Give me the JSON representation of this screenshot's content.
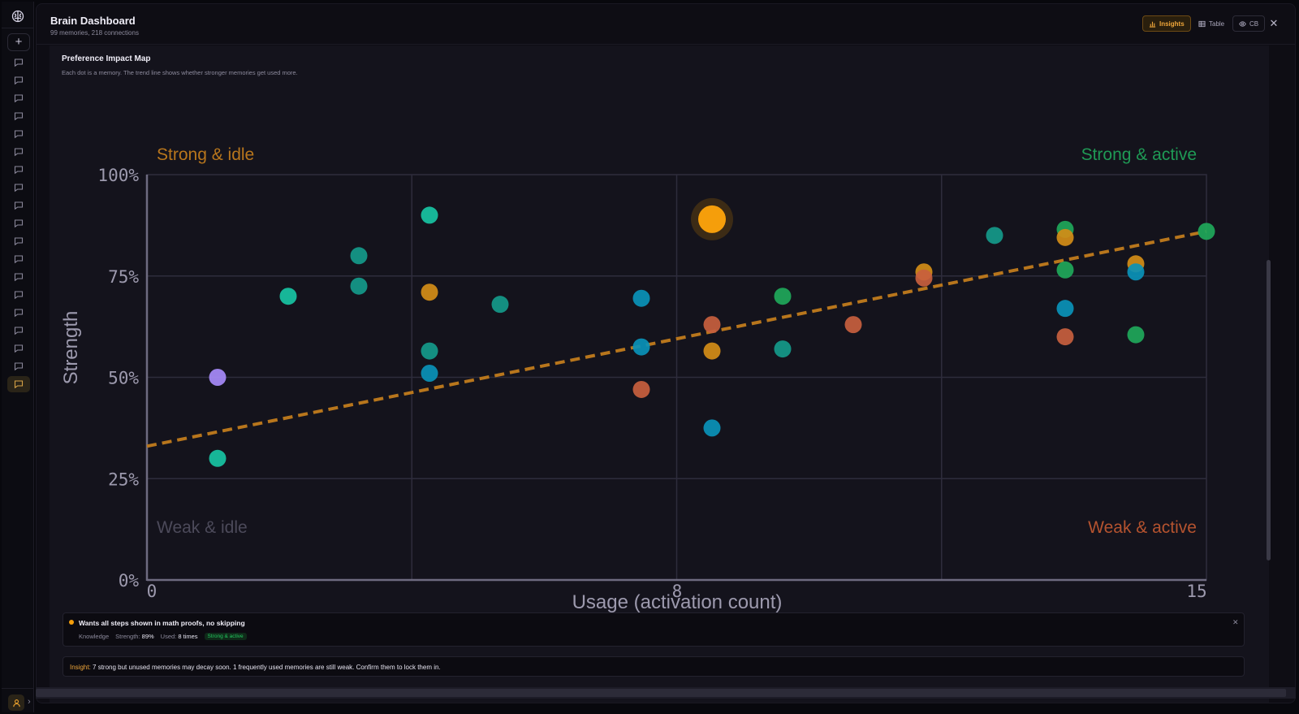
{
  "app": {
    "title": "Brain Dashboard",
    "subtitle": "99 memories, 218 connections"
  },
  "header_buttons": {
    "insights": "Insights",
    "table": "Table",
    "cb": "CB"
  },
  "sidebar": {
    "new_label": "+",
    "chat_count": 19,
    "active_index": 18
  },
  "map": {
    "title": "Preference Impact Map",
    "description": "Each dot is a memory. The trend line shows whether stronger memories get used more."
  },
  "detail": {
    "text": "Wants all steps shown in math proofs, no skipping",
    "category": "Knowledge",
    "strength_label": "Strength:",
    "strength_value": "89%",
    "used_label": "Used:",
    "used_value": "8 times",
    "badge": "Strong & active"
  },
  "insight": {
    "label": "Insight:",
    "text": " 7 strong but unused memories may decay soon. 1 frequently used memories are still weak. Confirm them to lock them in."
  },
  "colors": {
    "accent": "#f59e0b",
    "teal": "#14b8a6",
    "green": "#22c55e",
    "cyan": "#06b6d4",
    "orange": "#e0683c",
    "amber": "#e39a1a",
    "violet": "#a78bfa",
    "trend": "#b8761c"
  },
  "chart_data": {
    "type": "scatter",
    "xlabel": "Usage (activation count)",
    "ylabel": "Strength",
    "xlim": [
      0,
      15
    ],
    "ylim": [
      0,
      100
    ],
    "x_ticks": [
      "0",
      "8",
      "15"
    ],
    "y_ticks": [
      "0%",
      "25%",
      "50%",
      "75%",
      "100%"
    ],
    "quadrants": {
      "top_left": "Strong & idle",
      "top_right": "Strong & active",
      "bottom_left": "Weak & idle",
      "bottom_right": "Weak & active"
    },
    "trend": {
      "y_at_x0": 33,
      "y_at_x15": 86
    },
    "selected": {
      "x": 8,
      "y": 89
    },
    "points": [
      {
        "x": 1,
        "y": 30,
        "c": "teal"
      },
      {
        "x": 1,
        "y": 50,
        "c": "violet"
      },
      {
        "x": 2,
        "y": 70,
        "c": "teal"
      },
      {
        "x": 3,
        "y": 80,
        "c": "tealdark"
      },
      {
        "x": 3,
        "y": 72.5,
        "c": "tealdark"
      },
      {
        "x": 4,
        "y": 90,
        "c": "teal"
      },
      {
        "x": 4,
        "y": 71,
        "c": "amber"
      },
      {
        "x": 4,
        "y": 56.5,
        "c": "tealdark"
      },
      {
        "x": 4,
        "y": 51,
        "c": "cyan"
      },
      {
        "x": 5,
        "y": 68,
        "c": "tealdark"
      },
      {
        "x": 7,
        "y": 69.5,
        "c": "cyan"
      },
      {
        "x": 7,
        "y": 57.5,
        "c": "cyan"
      },
      {
        "x": 7,
        "y": 47,
        "c": "orange"
      },
      {
        "x": 8,
        "y": 63,
        "c": "orange"
      },
      {
        "x": 8,
        "y": 56.5,
        "c": "amber"
      },
      {
        "x": 8,
        "y": 37.5,
        "c": "cyan"
      },
      {
        "x": 9,
        "y": 70,
        "c": "green"
      },
      {
        "x": 9,
        "y": 57,
        "c": "tealdark"
      },
      {
        "x": 10,
        "y": 63,
        "c": "orange"
      },
      {
        "x": 11,
        "y": 76,
        "c": "amber"
      },
      {
        "x": 11,
        "y": 74.5,
        "c": "orange"
      },
      {
        "x": 12,
        "y": 85,
        "c": "tealdark"
      },
      {
        "x": 13,
        "y": 86.5,
        "c": "green"
      },
      {
        "x": 13,
        "y": 84.5,
        "c": "amber"
      },
      {
        "x": 13,
        "y": 76.5,
        "c": "green"
      },
      {
        "x": 13,
        "y": 67,
        "c": "cyan"
      },
      {
        "x": 13,
        "y": 60,
        "c": "orange"
      },
      {
        "x": 14,
        "y": 78,
        "c": "amber"
      },
      {
        "x": 14,
        "y": 76,
        "c": "cyan"
      },
      {
        "x": 14,
        "y": 60.5,
        "c": "green"
      },
      {
        "x": 15,
        "y": 86,
        "c": "green"
      }
    ]
  }
}
